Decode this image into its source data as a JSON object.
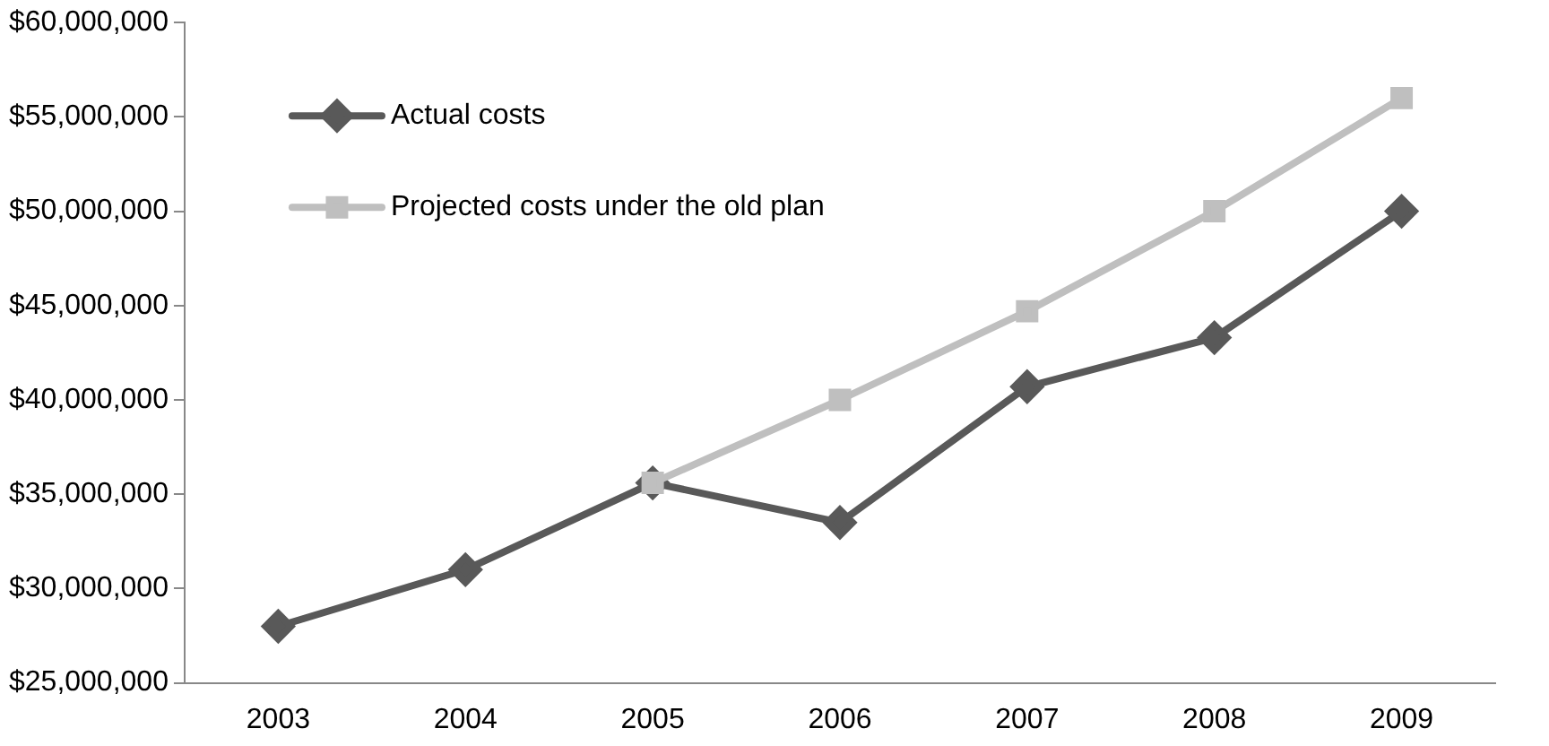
{
  "chart_data": {
    "type": "line",
    "categories": [
      "2003",
      "2004",
      "2005",
      "2006",
      "2007",
      "2008",
      "2009"
    ],
    "series": [
      {
        "name": "Actual costs",
        "color": "#595959",
        "marker": "diamond",
        "values": [
          28000000,
          31000000,
          35600000,
          33500000,
          40700000,
          43300000,
          50000000
        ]
      },
      {
        "name": "Projected costs under the old plan",
        "color": "#bfbfbf",
        "marker": "square",
        "values": [
          null,
          null,
          35600000,
          40000000,
          44700000,
          50000000,
          56000000
        ]
      }
    ],
    "ylim": [
      25000000,
      60000000
    ],
    "yticks": [
      {
        "value": 25000000,
        "label": "$25,000,000"
      },
      {
        "value": 30000000,
        "label": "$30,000,000"
      },
      {
        "value": 35000000,
        "label": "$35,000,000"
      },
      {
        "value": 40000000,
        "label": "$40,000,000"
      },
      {
        "value": 45000000,
        "label": "$45,000,000"
      },
      {
        "value": 50000000,
        "label": "$50,000,000"
      },
      {
        "value": 55000000,
        "label": "$55,000,000"
      },
      {
        "value": 60000000,
        "label": "$60,000,000"
      }
    ],
    "grid": false,
    "legend": "top left",
    "line_style": "solid"
  }
}
